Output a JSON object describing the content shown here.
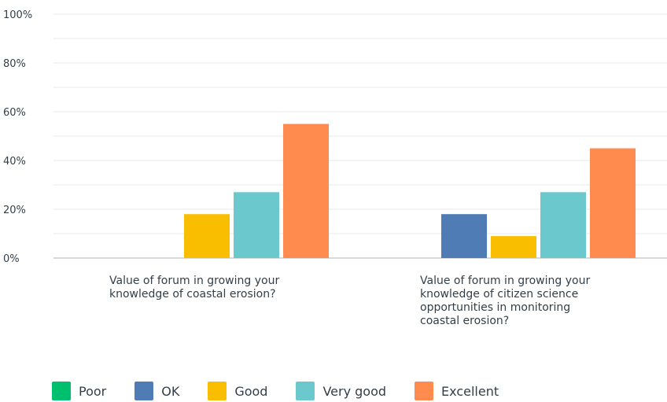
{
  "chart_data": {
    "type": "bar",
    "y_ticks": [
      "100%",
      "80%",
      "60%",
      "40%",
      "20%",
      "0%"
    ],
    "ylim": [
      0,
      100
    ],
    "grid": true,
    "legend_position": "bottom",
    "categories": [
      "Value of forum in growing your\nknowledge of coastal erosion?",
      "Value of forum in growing your\nknowledge of citizen science\nopportunities in monitoring\ncoastal erosion?"
    ],
    "series": [
      {
        "name": "Poor",
        "color": "#00bf6f",
        "values": [
          0,
          0
        ]
      },
      {
        "name": "OK",
        "color": "#507cb6",
        "values": [
          0,
          18
        ]
      },
      {
        "name": "Good",
        "color": "#f9be00",
        "values": [
          18,
          9
        ]
      },
      {
        "name": "Very good",
        "color": "#6bc8cd",
        "values": [
          27,
          27
        ]
      },
      {
        "name": "Excellent",
        "color": "#ff8b4f",
        "values": [
          55,
          45
        ]
      }
    ]
  }
}
